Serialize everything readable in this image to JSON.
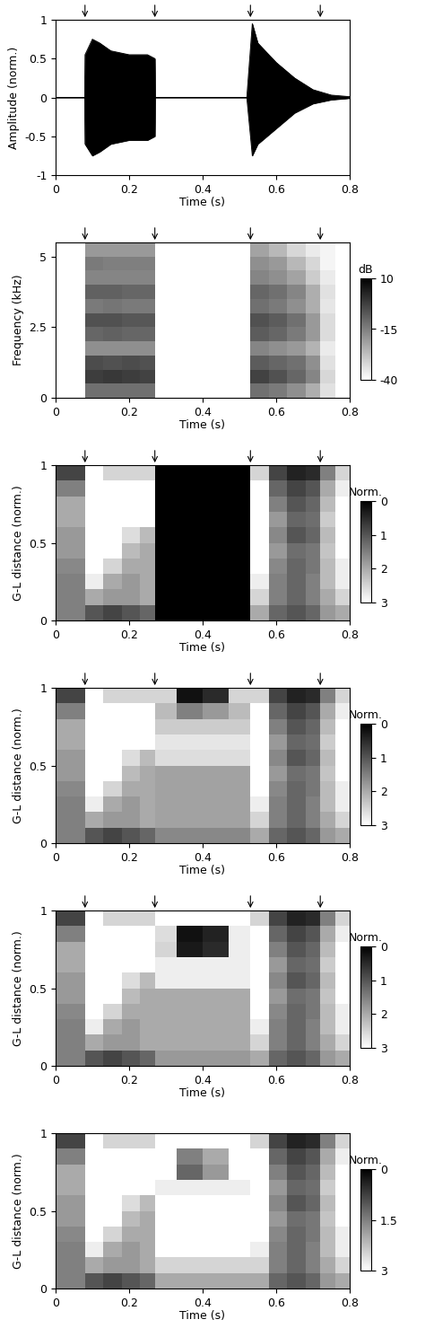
{
  "chart_data": [
    {
      "type": "area",
      "color": "#000000",
      "xlabel": "Time (s)",
      "ylabel": "Amplitude (norm.)",
      "xlim": [
        0,
        0.8
      ],
      "xticks": [
        0,
        0.2,
        0.4,
        0.6,
        0.8
      ],
      "ylim": [
        -1,
        1
      ],
      "yticks": [
        -1,
        -0.5,
        0,
        0.5,
        1
      ],
      "boundaries": [
        0.08,
        0.27,
        0.53,
        0.72
      ],
      "x": [
        0,
        0.079,
        0.08,
        0.1,
        0.12,
        0.15,
        0.2,
        0.25,
        0.27,
        0.271,
        0.52,
        0.535,
        0.55,
        0.6,
        0.65,
        0.7,
        0.75,
        0.8
      ],
      "upper": [
        0,
        0,
        0.55,
        0.75,
        0.7,
        0.6,
        0.55,
        0.55,
        0.5,
        0,
        0,
        0.95,
        0.7,
        0.45,
        0.25,
        0.1,
        0.03,
        0.01
      ],
      "lower": [
        0,
        0,
        -0.6,
        -0.75,
        -0.7,
        -0.6,
        -0.55,
        -0.55,
        -0.5,
        0,
        0,
        -0.75,
        -0.6,
        -0.4,
        -0.2,
        -0.08,
        -0.03,
        -0.01
      ]
    },
    {
      "type": "heatmap",
      "xlabel": "Time (s)",
      "ylabel": "Frequency (kHz)",
      "xlim": [
        0,
        0.8
      ],
      "xticks": [
        0,
        0.2,
        0.4,
        0.6,
        0.8
      ],
      "ylim": [
        0,
        5.5
      ],
      "yticks": [
        0,
        2.5,
        5
      ],
      "boundaries": [
        0.08,
        0.27,
        0.53,
        0.72
      ],
      "x_edges": [
        0,
        0.08,
        0.13,
        0.18,
        0.23,
        0.27,
        0.33,
        0.4,
        0.47,
        0.53,
        0.58,
        0.63,
        0.68,
        0.72,
        0.76,
        0.8
      ],
      "y_edges": [
        0,
        0.5,
        1,
        1.5,
        2,
        2.5,
        3,
        3.5,
        4,
        4.5,
        5,
        5.5
      ],
      "cells": [
        [
          -40,
          -12,
          -12,
          -12,
          -12,
          -40,
          -40,
          -40,
          -40,
          -12,
          -14,
          -18,
          -24,
          -34,
          -40
        ],
        [
          -40,
          -2,
          -1,
          -2,
          -3,
          -40,
          -40,
          -40,
          -40,
          -3,
          -6,
          -10,
          -16,
          -32,
          -40
        ],
        [
          -40,
          -5,
          -6,
          -5,
          -6,
          -40,
          -40,
          -40,
          -40,
          -8,
          -10,
          -12,
          -18,
          -34,
          -40
        ],
        [
          -40,
          -18,
          -18,
          -18,
          -18,
          -40,
          -40,
          -40,
          -40,
          -16,
          -18,
          -20,
          -25,
          -36,
          -40
        ],
        [
          -40,
          -10,
          -9,
          -10,
          -10,
          -40,
          -40,
          -40,
          -40,
          -8,
          -10,
          -14,
          -20,
          -33,
          -40
        ],
        [
          -40,
          -6,
          -6,
          -7,
          -7,
          -40,
          -40,
          -40,
          -40,
          -6,
          -8,
          -12,
          -20,
          -33,
          -40
        ],
        [
          -40,
          -14,
          -13,
          -14,
          -14,
          -40,
          -40,
          -40,
          -40,
          -12,
          -14,
          -18,
          -24,
          -35,
          -40
        ],
        [
          -40,
          -9,
          -9,
          -10,
          -10,
          -40,
          -40,
          -40,
          -40,
          -10,
          -12,
          -16,
          -24,
          -34,
          -40
        ],
        [
          -40,
          -16,
          -16,
          -16,
          -16,
          -40,
          -40,
          -40,
          -40,
          -16,
          -18,
          -22,
          -30,
          -36,
          -40
        ],
        [
          -40,
          -14,
          -15,
          -15,
          -15,
          -40,
          -40,
          -40,
          -40,
          -18,
          -20,
          -26,
          -32,
          -38,
          -40
        ],
        [
          -40,
          -20,
          -20,
          -20,
          -20,
          -40,
          -40,
          -40,
          -40,
          -22,
          -26,
          -32,
          -36,
          -38,
          -40
        ]
      ],
      "colorbar": {
        "label": "dB",
        "range": [
          -40,
          10
        ],
        "ticks": [
          10,
          -15,
          -40
        ]
      }
    },
    {
      "type": "heatmap",
      "xlabel": "Time (s)",
      "ylabel": "G-L distance (norm.)",
      "xlim": [
        0,
        0.8
      ],
      "xticks": [
        0,
        0.2,
        0.4,
        0.6,
        0.8
      ],
      "ylim": [
        0,
        1
      ],
      "yticks": [
        0,
        0.5,
        1
      ],
      "boundaries": [
        0.08,
        0.27,
        0.53,
        0.72
      ],
      "x_edges": [
        0,
        0.08,
        0.13,
        0.18,
        0.23,
        0.27,
        0.33,
        0.4,
        0.47,
        0.53,
        0.58,
        0.63,
        0.68,
        0.72,
        0.76,
        0.8
      ],
      "y_edges": [
        0,
        0.1,
        0.2,
        0.3,
        0.4,
        0.5,
        0.6,
        0.7,
        0.8,
        0.9,
        1
      ],
      "cells": [
        [
          1.5,
          1.0,
          0.8,
          1.0,
          1.2,
          0,
          0,
          0,
          0,
          2.0,
          1.2,
          1.0,
          1.2,
          1.8,
          2.0
        ],
        [
          1.5,
          2.0,
          1.8,
          1.8,
          2.0,
          0,
          0,
          0,
          0,
          2.5,
          1.5,
          1.2,
          1.5,
          2.0,
          2.5
        ],
        [
          1.5,
          2.8,
          2.0,
          1.8,
          2.0,
          0,
          0,
          0,
          0,
          2.8,
          1.5,
          1.2,
          1.5,
          2.2,
          2.8
        ],
        [
          1.6,
          3,
          2.5,
          2.0,
          2.0,
          0,
          0,
          0,
          0,
          3,
          1.6,
          1.2,
          1.4,
          2.2,
          2.8
        ],
        [
          1.8,
          3,
          3,
          2.2,
          2.0,
          0,
          0,
          0,
          0,
          3,
          1.8,
          1.3,
          1.4,
          2.3,
          3
        ],
        [
          1.8,
          3,
          3,
          2.6,
          2.2,
          0,
          0,
          0,
          0,
          3,
          1.6,
          1.0,
          1.2,
          2.2,
          3
        ],
        [
          2.0,
          3,
          3,
          3,
          3,
          0,
          0,
          0,
          0,
          3,
          1.8,
          1.2,
          1.3,
          2.4,
          3
        ],
        [
          2.0,
          3,
          3,
          3,
          3,
          0,
          0,
          0,
          0,
          3,
          1.5,
          1.0,
          1.2,
          2.2,
          3
        ],
        [
          1.5,
          3,
          3,
          3,
          3,
          0,
          0,
          0,
          0,
          3,
          1.2,
          0.8,
          1.0,
          2.0,
          2.8
        ],
        [
          0.8,
          3,
          2.5,
          2.5,
          2.5,
          0,
          0,
          0,
          0,
          2.5,
          0.8,
          0.4,
          0.5,
          1.5,
          2.5
        ]
      ],
      "colorbar": {
        "label": "Norm.",
        "range": [
          3,
          0
        ],
        "ticks": [
          0,
          1,
          2,
          3
        ]
      }
    },
    {
      "type": "heatmap",
      "xlabel": "Time (s)",
      "ylabel": "G-L distance (norm.)",
      "xlim": [
        0,
        0.8
      ],
      "xticks": [
        0,
        0.2,
        0.4,
        0.6,
        0.8
      ],
      "ylim": [
        0,
        1
      ],
      "yticks": [
        0,
        0.5,
        1
      ],
      "boundaries": [
        0.08,
        0.27,
        0.53,
        0.72
      ],
      "x_edges": [
        0,
        0.08,
        0.13,
        0.18,
        0.23,
        0.27,
        0.33,
        0.4,
        0.47,
        0.53,
        0.58,
        0.63,
        0.68,
        0.72,
        0.76,
        0.8
      ],
      "y_edges": [
        0,
        0.1,
        0.2,
        0.3,
        0.4,
        0.5,
        0.6,
        0.7,
        0.8,
        0.9,
        1
      ],
      "cells": [
        [
          1.5,
          1.0,
          0.8,
          1.0,
          1.2,
          1.6,
          1.6,
          1.6,
          1.6,
          2.0,
          1.2,
          1.0,
          1.2,
          1.8,
          2.0
        ],
        [
          1.5,
          2.0,
          1.8,
          1.8,
          2.0,
          1.9,
          1.9,
          1.9,
          1.9,
          2.5,
          1.5,
          1.2,
          1.5,
          2.0,
          2.5
        ],
        [
          1.5,
          2.8,
          2.0,
          1.8,
          2.0,
          1.9,
          1.9,
          1.9,
          1.9,
          2.8,
          1.5,
          1.2,
          1.5,
          2.2,
          2.8
        ],
        [
          1.6,
          3,
          2.5,
          2.0,
          2.0,
          1.9,
          1.9,
          1.9,
          1.9,
          3,
          1.6,
          1.2,
          1.4,
          2.2,
          2.8
        ],
        [
          1.8,
          3,
          3,
          2.2,
          2.0,
          1.9,
          1.9,
          1.9,
          1.9,
          3,
          1.8,
          1.3,
          1.4,
          2.3,
          3
        ],
        [
          1.8,
          3,
          3,
          2.6,
          2.2,
          2.6,
          2.6,
          2.6,
          2.6,
          3,
          1.6,
          1.0,
          1.2,
          2.2,
          3
        ],
        [
          2.0,
          3,
          3,
          3,
          3,
          2.7,
          2.7,
          2.7,
          2.7,
          3,
          1.8,
          1.2,
          1.3,
          2.4,
          3
        ],
        [
          2.0,
          3,
          3,
          3,
          3,
          2.4,
          2.4,
          2.4,
          2.4,
          3,
          1.5,
          1.0,
          1.2,
          2.2,
          3
        ],
        [
          1.5,
          3,
          3,
          3,
          3,
          2.2,
          1.5,
          1.8,
          2.2,
          3,
          1.2,
          0.8,
          1.0,
          2.0,
          2.8
        ],
        [
          0.8,
          3,
          2.5,
          2.5,
          2.5,
          2.5,
          0.2,
          0.5,
          2.5,
          2.5,
          0.8,
          0.4,
          0.5,
          1.5,
          2.5
        ]
      ],
      "colorbar": {
        "label": "Norm.",
        "range": [
          3,
          0
        ],
        "ticks": [
          0,
          1,
          2,
          3
        ]
      }
    },
    {
      "type": "heatmap",
      "xlabel": "Time (s)",
      "ylabel": "G-L distance (norm.)",
      "xlim": [
        0,
        0.8
      ],
      "xticks": [
        0,
        0.2,
        0.4,
        0.6,
        0.8
      ],
      "ylim": [
        0,
        1
      ],
      "yticks": [
        0,
        0.5,
        1
      ],
      "boundaries": [
        0.08,
        0.27,
        0.53,
        0.72
      ],
      "x_edges": [
        0,
        0.08,
        0.13,
        0.18,
        0.23,
        0.27,
        0.33,
        0.4,
        0.47,
        0.53,
        0.58,
        0.63,
        0.68,
        0.72,
        0.76,
        0.8
      ],
      "y_edges": [
        0,
        0.1,
        0.2,
        0.3,
        0.4,
        0.5,
        0.6,
        0.7,
        0.8,
        0.9,
        1
      ],
      "cells": [
        [
          1.5,
          1.0,
          0.8,
          1.0,
          1.2,
          1.8,
          1.8,
          1.8,
          1.8,
          2.0,
          1.2,
          1.0,
          1.2,
          1.8,
          2.0
        ],
        [
          1.5,
          2.0,
          1.8,
          1.8,
          2.0,
          2.0,
          2.0,
          2.0,
          2.0,
          2.5,
          1.5,
          1.2,
          1.5,
          2.0,
          2.5
        ],
        [
          1.5,
          2.8,
          2.0,
          1.8,
          2.0,
          2.0,
          2.0,
          2.0,
          2.0,
          2.8,
          1.5,
          1.2,
          1.5,
          2.2,
          2.8
        ],
        [
          1.6,
          3,
          2.5,
          2.0,
          2.0,
          2.0,
          2.0,
          2.0,
          2.0,
          3,
          1.6,
          1.2,
          1.4,
          2.2,
          2.8
        ],
        [
          1.8,
          3,
          3,
          2.2,
          2.0,
          2.0,
          2.0,
          2.0,
          2.0,
          3,
          1.8,
          1.3,
          1.4,
          2.3,
          3
        ],
        [
          1.8,
          3,
          3,
          2.6,
          2.2,
          2.8,
          2.8,
          2.8,
          2.8,
          3,
          1.6,
          1.0,
          1.2,
          2.2,
          3
        ],
        [
          2.0,
          3,
          3,
          3,
          3,
          2.8,
          2.8,
          2.8,
          2.8,
          3,
          1.8,
          1.2,
          1.3,
          2.4,
          3
        ],
        [
          2.0,
          3,
          3,
          3,
          3,
          2.5,
          0.3,
          0.5,
          2.8,
          3,
          1.5,
          1.0,
          1.2,
          2.2,
          3
        ],
        [
          1.5,
          3,
          3,
          3,
          3,
          2.6,
          0.2,
          0.4,
          2.8,
          3,
          1.2,
          0.8,
          1.0,
          2.0,
          2.8
        ],
        [
          0.8,
          3,
          2.5,
          2.5,
          2.5,
          3,
          3,
          3,
          3,
          2.5,
          0.8,
          0.4,
          0.5,
          1.5,
          2.5
        ]
      ],
      "colorbar": {
        "label": "Norm.",
        "range": [
          3,
          0
        ],
        "ticks": [
          0,
          1,
          2,
          3
        ]
      }
    },
    {
      "type": "heatmap",
      "xlabel": "Time (s)",
      "ylabel": "G-L distance (norm.)",
      "xlim": [
        0,
        0.8
      ],
      "xticks": [
        0,
        0.2,
        0.4,
        0.6,
        0.8
      ],
      "ylim": [
        0,
        1
      ],
      "yticks": [
        0,
        0.5,
        1
      ],
      "x_edges": [
        0,
        0.08,
        0.13,
        0.18,
        0.23,
        0.27,
        0.33,
        0.4,
        0.47,
        0.53,
        0.58,
        0.63,
        0.68,
        0.72,
        0.76,
        0.8
      ],
      "y_edges": [
        0,
        0.1,
        0.2,
        0.3,
        0.4,
        0.5,
        0.6,
        0.7,
        0.8,
        0.9,
        1
      ],
      "cells": [
        [
          1.5,
          1.0,
          0.8,
          1.0,
          1.2,
          2.0,
          2.0,
          2.0,
          2.0,
          2.0,
          1.2,
          1.0,
          1.2,
          1.8,
          2.0
        ],
        [
          1.5,
          2.0,
          1.8,
          1.8,
          2.0,
          2.5,
          2.5,
          2.5,
          2.5,
          2.5,
          1.5,
          1.2,
          1.5,
          2.0,
          2.5
        ],
        [
          1.5,
          2.8,
          2.0,
          1.8,
          2.0,
          3,
          3,
          3,
          3,
          2.8,
          1.5,
          1.2,
          1.5,
          2.2,
          2.8
        ],
        [
          1.6,
          3,
          2.5,
          2.0,
          2.0,
          3,
          3,
          3,
          3,
          3,
          1.6,
          1.2,
          1.4,
          2.2,
          2.8
        ],
        [
          1.8,
          3,
          3,
          2.2,
          2.0,
          3,
          3,
          3,
          3,
          3,
          1.8,
          1.3,
          1.4,
          2.3,
          3
        ],
        [
          1.8,
          3,
          3,
          2.6,
          2.2,
          3,
          3,
          3,
          3,
          3,
          1.6,
          1.0,
          1.2,
          2.2,
          3
        ],
        [
          2.0,
          3,
          3,
          3,
          3,
          2.8,
          2.8,
          2.8,
          2.8,
          3,
          1.8,
          1.2,
          1.3,
          2.4,
          3
        ],
        [
          2.0,
          3,
          3,
          3,
          3,
          3,
          1.2,
          1.8,
          3,
          3,
          1.5,
          1.0,
          1.2,
          2.2,
          3
        ],
        [
          1.5,
          3,
          3,
          3,
          3,
          3,
          1.5,
          2.0,
          3,
          3,
          1.2,
          0.8,
          1.0,
          2.0,
          2.8
        ],
        [
          0.8,
          3,
          2.5,
          2.5,
          2.5,
          3,
          3,
          3,
          3,
          2.5,
          0.8,
          0.4,
          0.5,
          1.5,
          2.5
        ]
      ],
      "colorbar": {
        "label": "Norm.",
        "range": [
          3,
          0
        ],
        "ticks": [
          0,
          1.5,
          3
        ]
      }
    }
  ]
}
